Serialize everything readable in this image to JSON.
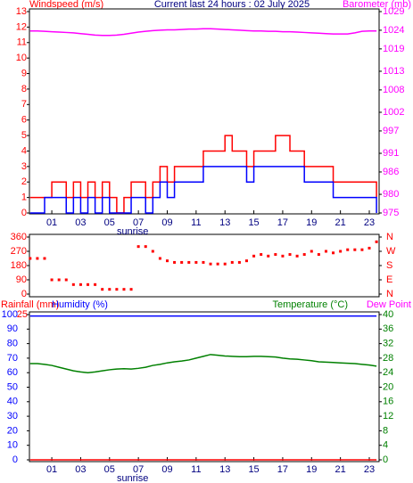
{
  "chart_data": [
    {
      "type": "line",
      "title": "Current last 24 hours : 02 July 2025",
      "ylabel": "Windspeed (m/s)",
      "y2label": "Barometer (mb)",
      "step": true,
      "annotation": {
        "text": "sunrise",
        "x": 6.6
      },
      "xlim": [
        -0.55,
        23.68
      ],
      "xticks": [
        {
          "value": 1,
          "label": "01"
        },
        {
          "value": 3,
          "label": "03"
        },
        {
          "value": 5,
          "label": "05"
        },
        {
          "value": 7,
          "label": "07"
        },
        {
          "value": 9,
          "label": "09"
        },
        11,
        13,
        15,
        17,
        19,
        21,
        23
      ],
      "ylim": [
        0,
        13
      ],
      "yticks": [
        0,
        1,
        2,
        3,
        4,
        5,
        6,
        7,
        8,
        9,
        10,
        11,
        12,
        13
      ],
      "ycolor": "#ff0000",
      "y2lim": [
        975,
        1029
      ],
      "y2ticks": [
        975,
        980,
        986,
        991,
        997,
        1002,
        1008,
        1013,
        1019,
        1024,
        1029
      ],
      "y2color": "#ff00ff",
      "x": [
        -0.5,
        0,
        0.5,
        1,
        1.5,
        2,
        2.5,
        3,
        3.5,
        4,
        4.5,
        5,
        5.5,
        6,
        6.5,
        7,
        7.5,
        8,
        8.5,
        9,
        9.5,
        10,
        10.5,
        11,
        11.5,
        12,
        12.5,
        13,
        13.5,
        14,
        14.5,
        15,
        15.5,
        16,
        16.5,
        17,
        17.5,
        18,
        18.5,
        19,
        19.5,
        20,
        20.5,
        21,
        21.5,
        22,
        22.5,
        23,
        23.5
      ],
      "series": [
        {
          "color": "#ff0000",
          "values": [
            1,
            1,
            1,
            2,
            2,
            1,
            2,
            1,
            2,
            1,
            2,
            1,
            0,
            1,
            2,
            2,
            1,
            2,
            3,
            2,
            3,
            3,
            3,
            3,
            4,
            4,
            4,
            5,
            4,
            4,
            3,
            4,
            4,
            4,
            5,
            5,
            4,
            4,
            3,
            3,
            3,
            3,
            2,
            2,
            2,
            2,
            2,
            2,
            1
          ]
        },
        {
          "color": "#0000ff",
          "values": [
            0,
            0,
            1,
            1,
            1,
            0,
            1,
            0,
            1,
            0,
            1,
            0,
            0,
            0,
            1,
            1,
            0,
            1,
            2,
            1,
            2,
            2,
            2,
            2,
            3,
            3,
            3,
            3,
            3,
            3,
            2,
            3,
            3,
            3,
            3,
            3,
            3,
            3,
            2,
            2,
            2,
            2,
            1,
            1,
            1,
            1,
            1,
            1,
            0
          ]
        },
        {
          "color": "#ff00ff",
          "axis": "y2",
          "step": false,
          "values": [
            1023.8,
            1023.8,
            1023.7,
            1023.6,
            1023.5,
            1023.4,
            1023.3,
            1023.1,
            1022.9,
            1022.7,
            1022.6,
            1022.6,
            1022.7,
            1022.9,
            1023.2,
            1023.5,
            1023.7,
            1023.9,
            1024.0,
            1024.1,
            1024.1,
            1024.2,
            1024.3,
            1024.3,
            1024.4,
            1024.4,
            1024.3,
            1024.2,
            1024.1,
            1024.0,
            1023.9,
            1023.8,
            1023.8,
            1023.7,
            1023.7,
            1023.6,
            1023.6,
            1023.5,
            1023.4,
            1023.3,
            1023.2,
            1023.1,
            1023.0,
            1023.0,
            1023.0,
            1023.3,
            1023.7,
            1023.8,
            1023.8
          ]
        }
      ]
    },
    {
      "type": "scatter",
      "xlim": [
        -0.55,
        23.68
      ],
      "ylim": [
        0,
        360
      ],
      "yticks": [
        0,
        90,
        180,
        270,
        360
      ],
      "ycolor": "#ff0000",
      "y2lim": [
        0,
        360
      ],
      "y2ticks": [
        {
          "value": 0,
          "label": "N"
        },
        {
          "value": 90,
          "label": "E"
        },
        {
          "value": 180,
          "label": "S"
        },
        {
          "value": 270,
          "label": "W"
        },
        {
          "value": 360,
          "label": "N"
        }
      ],
      "y2color": "#ff0000",
      "x": [
        -0.5,
        0,
        0.5,
        1,
        1.5,
        2,
        2.5,
        3,
        3.5,
        4,
        4.5,
        5,
        5.5,
        6,
        6.5,
        7,
        7.5,
        8,
        8.5,
        9,
        9.5,
        10,
        10.5,
        11,
        11.5,
        12,
        12.5,
        13,
        13.5,
        14,
        14.5,
        15,
        15.5,
        16,
        16.5,
        17,
        17.5,
        18,
        18.5,
        19,
        19.5,
        20,
        20.5,
        21,
        21.5,
        22,
        22.5,
        23,
        23.5
      ],
      "series": [
        {
          "color": "#ff0000",
          "values": [
            225,
            225,
            225,
            90,
            90,
            90,
            60,
            60,
            60,
            60,
            30,
            30,
            30,
            30,
            30,
            300,
            300,
            270,
            225,
            210,
            200,
            200,
            200,
            200,
            200,
            190,
            190,
            190,
            200,
            200,
            210,
            240,
            250,
            240,
            250,
            240,
            250,
            240,
            250,
            270,
            250,
            270,
            260,
            270,
            280,
            280,
            280,
            290,
            330
          ]
        }
      ]
    },
    {
      "type": "line",
      "ylabel": "Humidity (%)",
      "y3label": "Rainfall (mm)",
      "y2label": "Temperature (°C)",
      "dewpoint_label": "Dew Point",
      "annotation": {
        "text": "sunrise",
        "x": 6.6
      },
      "xlim": [
        -0.55,
        23.68
      ],
      "xticks": [
        {
          "value": 1,
          "label": "01"
        },
        {
          "value": 3,
          "label": "03"
        },
        {
          "value": 5,
          "label": "05"
        },
        {
          "value": 7,
          "label": "07"
        },
        {
          "value": 9,
          "label": "09"
        },
        11,
        13,
        15,
        17,
        19,
        21,
        23
      ],
      "ylim": [
        0,
        100
      ],
      "yticks": [
        0,
        10,
        20,
        30,
        40,
        50,
        60,
        70,
        80,
        90,
        100
      ],
      "ycolor": "#0000ff",
      "y3lim": [
        0,
        25
      ],
      "y3ticks": [
        25
      ],
      "y3color": "#ff0000",
      "y2lim": [
        0,
        40
      ],
      "y2ticks": [
        0,
        4,
        8,
        12,
        16,
        20,
        24,
        28,
        32,
        36,
        40
      ],
      "y2color": "#008000",
      "x": [
        -0.5,
        0,
        0.5,
        1,
        1.5,
        2,
        2.5,
        3,
        3.5,
        4,
        4.5,
        5,
        5.5,
        6,
        6.5,
        7,
        7.5,
        8,
        8.5,
        9,
        9.5,
        10,
        10.5,
        11,
        11.5,
        12,
        12.5,
        13,
        13.5,
        14,
        14.5,
        15,
        15.5,
        16,
        16.5,
        17,
        17.5,
        18,
        18.5,
        19,
        19.5,
        20,
        20.5,
        21,
        21.5,
        22,
        22.5,
        23,
        23.5
      ],
      "series": [
        {
          "color": "#0000ff",
          "values": [
            99,
            99,
            99,
            99,
            99,
            99,
            99,
            99,
            99,
            99,
            99,
            99,
            99,
            99,
            99,
            99,
            99,
            99,
            99,
            99,
            99,
            99,
            99,
            99,
            99,
            99,
            99,
            99,
            99,
            99,
            99,
            99,
            99,
            99,
            99,
            99,
            99,
            99,
            99,
            99,
            99,
            99,
            99,
            99,
            99,
            99,
            99,
            99,
            99
          ]
        },
        {
          "color": "#ff0000",
          "axis": "y3",
          "values": [
            0,
            0,
            0,
            0,
            0,
            0,
            0,
            0,
            0,
            0,
            0,
            0,
            0,
            0,
            0,
            0,
            0,
            0,
            0,
            0,
            0,
            0,
            0,
            0,
            0,
            0,
            0,
            0,
            0,
            0,
            0,
            0,
            0,
            0,
            0,
            0,
            0,
            0,
            0,
            0,
            0,
            0,
            0,
            0,
            0,
            0,
            0,
            0,
            0
          ]
        },
        {
          "color": "#008000",
          "axis": "y2",
          "values": [
            26.5,
            26.5,
            26.3,
            26.0,
            25.5,
            25.0,
            24.5,
            24.2,
            24.0,
            24.2,
            24.5,
            24.8,
            25.0,
            25.1,
            25.0,
            25.2,
            25.5,
            26.0,
            26.3,
            26.7,
            27.0,
            27.2,
            27.5,
            28.0,
            28.5,
            29.0,
            28.8,
            28.6,
            28.5,
            28.4,
            28.4,
            28.5,
            28.5,
            28.4,
            28.3,
            28.0,
            27.8,
            27.7,
            27.5,
            27.3,
            27.0,
            26.9,
            26.8,
            26.7,
            26.6,
            26.5,
            26.3,
            26.1,
            25.8
          ]
        }
      ]
    }
  ]
}
